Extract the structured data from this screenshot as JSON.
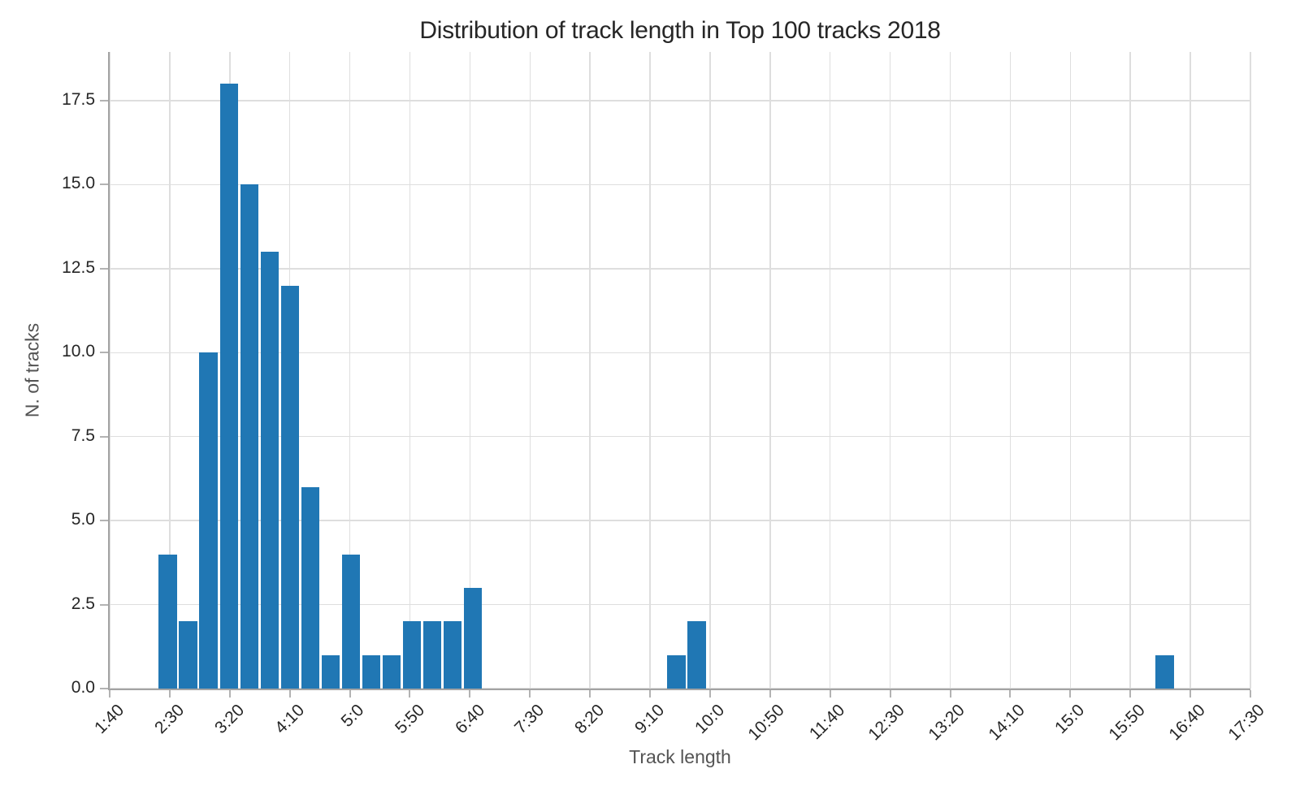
{
  "chart_data": {
    "type": "bar",
    "subtype": "histogram",
    "title": "Distribution of track length in Top 100 tracks 2018",
    "xlabel": "Track length",
    "ylabel": "N. of tracks",
    "x_tick_labels": [
      "1:40",
      "2:30",
      "3:20",
      "4:10",
      "5:0",
      "5:50",
      "6:40",
      "7:30",
      "8:20",
      "9:10",
      "10:0",
      "10:50",
      "11:40",
      "12:30",
      "13:20",
      "14:10",
      "15:0",
      "15:50",
      "16:40",
      "17:30"
    ],
    "x_tick_interval_seconds": 50,
    "y_tick_labels": [
      "0.0",
      "2.5",
      "5.0",
      "7.5",
      "10.0",
      "12.5",
      "15.0",
      "17.5"
    ],
    "bin_start_seconds": 140,
    "bin_width_seconds": 16.94,
    "bin_counts": [
      4,
      2,
      10,
      18,
      15,
      13,
      12,
      6,
      1,
      4,
      1,
      1,
      2,
      2,
      2,
      3,
      0,
      0,
      0,
      0,
      0,
      0,
      0,
      0,
      0,
      1,
      2,
      0,
      0,
      0,
      0,
      0,
      0,
      0,
      0,
      0,
      0,
      0,
      0,
      0,
      0,
      0,
      0,
      0,
      0,
      0,
      0,
      0,
      0,
      1
    ],
    "total_tracks": 100,
    "xlim_seconds": [
      100,
      1050
    ],
    "ylim": [
      0,
      18.95
    ],
    "grid": true,
    "legend": "none",
    "bar_color": "#2077b4"
  },
  "colors": {
    "background": "#ffffff",
    "grid": "#dedede",
    "spine": "#a3a3a3",
    "tick_mark": "#b3b3b3",
    "tick_label_text": "#262626",
    "axis_label_text": "#545454",
    "title_text": "#262626"
  }
}
